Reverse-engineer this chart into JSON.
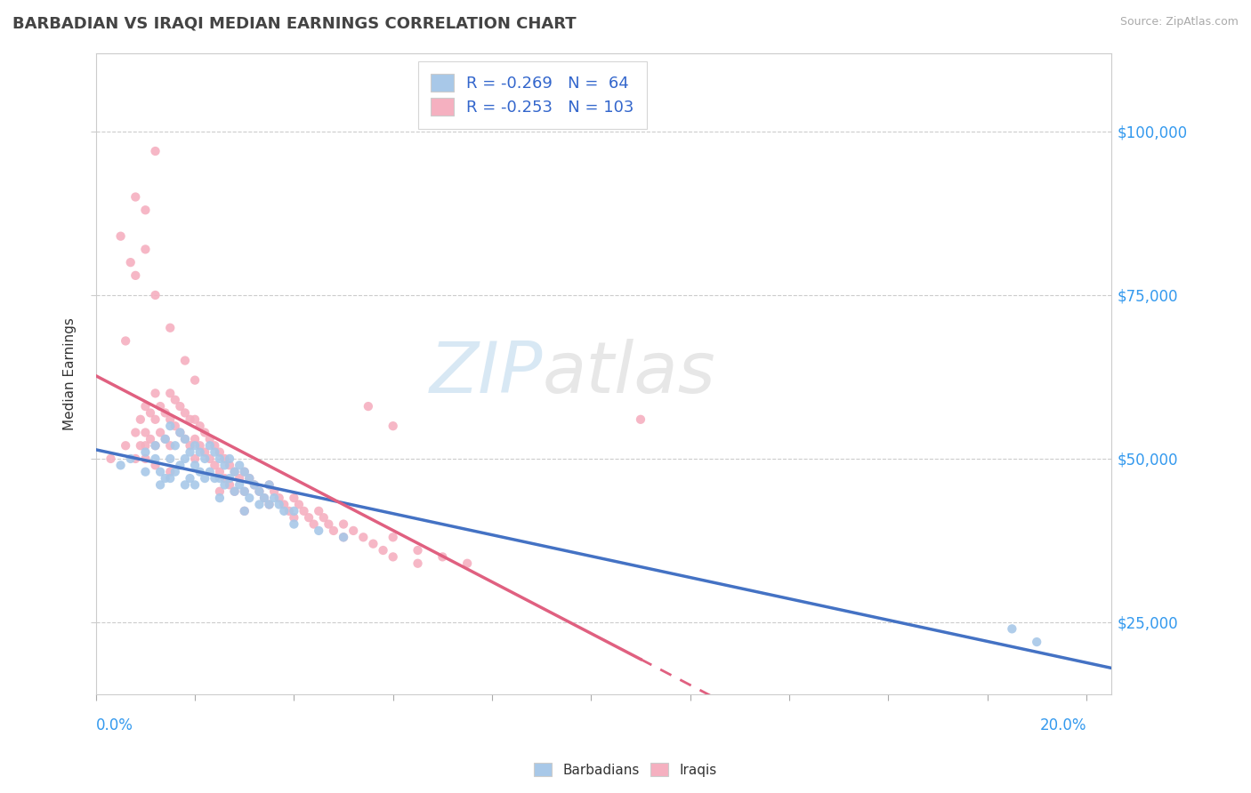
{
  "title": "BARBADIAN VS IRAQI MEDIAN EARNINGS CORRELATION CHART",
  "source": "Source: ZipAtlas.com",
  "ylabel": "Median Earnings",
  "y_ticks": [
    25000,
    50000,
    75000,
    100000
  ],
  "y_tick_labels": [
    "$25,000",
    "$50,000",
    "$75,000",
    "$100,000"
  ],
  "x_range": [
    0.0,
    0.205
  ],
  "y_range": [
    14000,
    112000
  ],
  "barbadian_color": "#a8c8e8",
  "iraqi_color": "#f5b0c0",
  "barbadian_line_color": "#4472c4",
  "iraqi_line_color": "#e06080",
  "watermark_zip": "ZIP",
  "watermark_atlas": "atlas",
  "legend_entries": [
    {
      "label": "R = -0.269   N =  64",
      "color": "#a8c8e8"
    },
    {
      "label": "R = -0.253   N = 103",
      "color": "#f5b0c0"
    }
  ],
  "barbadian_scatter_x": [
    0.005,
    0.007,
    0.01,
    0.01,
    0.012,
    0.012,
    0.013,
    0.013,
    0.014,
    0.014,
    0.015,
    0.015,
    0.015,
    0.016,
    0.016,
    0.017,
    0.017,
    0.018,
    0.018,
    0.018,
    0.019,
    0.019,
    0.02,
    0.02,
    0.02,
    0.021,
    0.021,
    0.022,
    0.022,
    0.023,
    0.023,
    0.024,
    0.024,
    0.025,
    0.025,
    0.025,
    0.026,
    0.026,
    0.027,
    0.027,
    0.028,
    0.028,
    0.029,
    0.029,
    0.03,
    0.03,
    0.03,
    0.031,
    0.031,
    0.032,
    0.033,
    0.033,
    0.034,
    0.035,
    0.035,
    0.036,
    0.037,
    0.038,
    0.04,
    0.04,
    0.045,
    0.05,
    0.19,
    0.185
  ],
  "barbadian_scatter_y": [
    49000,
    50000,
    51000,
    48000,
    52000,
    50000,
    48000,
    46000,
    53000,
    47000,
    55000,
    50000,
    47000,
    52000,
    48000,
    54000,
    49000,
    53000,
    50000,
    46000,
    51000,
    47000,
    52000,
    49000,
    46000,
    51000,
    48000,
    50000,
    47000,
    52000,
    48000,
    51000,
    47000,
    50000,
    47000,
    44000,
    49000,
    46000,
    50000,
    47000,
    48000,
    45000,
    49000,
    46000,
    48000,
    45000,
    42000,
    47000,
    44000,
    46000,
    45000,
    43000,
    44000,
    46000,
    43000,
    44000,
    43000,
    42000,
    42000,
    40000,
    39000,
    38000,
    22000,
    24000
  ],
  "iraqi_scatter_x": [
    0.003,
    0.005,
    0.006,
    0.007,
    0.008,
    0.008,
    0.009,
    0.009,
    0.01,
    0.01,
    0.01,
    0.011,
    0.011,
    0.012,
    0.012,
    0.012,
    0.013,
    0.013,
    0.014,
    0.014,
    0.015,
    0.015,
    0.015,
    0.015,
    0.016,
    0.016,
    0.017,
    0.017,
    0.018,
    0.018,
    0.019,
    0.019,
    0.02,
    0.02,
    0.02,
    0.021,
    0.021,
    0.022,
    0.022,
    0.023,
    0.023,
    0.024,
    0.024,
    0.025,
    0.025,
    0.025,
    0.026,
    0.026,
    0.027,
    0.027,
    0.028,
    0.028,
    0.029,
    0.03,
    0.03,
    0.03,
    0.031,
    0.032,
    0.033,
    0.034,
    0.035,
    0.035,
    0.036,
    0.037,
    0.038,
    0.039,
    0.04,
    0.04,
    0.041,
    0.042,
    0.043,
    0.044,
    0.045,
    0.046,
    0.047,
    0.048,
    0.05,
    0.05,
    0.052,
    0.054,
    0.056,
    0.058,
    0.06,
    0.06,
    0.065,
    0.065,
    0.07,
    0.075,
    0.008,
    0.01,
    0.012,
    0.015,
    0.018,
    0.02,
    0.012,
    0.01,
    0.008,
    0.006,
    0.055,
    0.06,
    0.01,
    0.012,
    0.11
  ],
  "iraqi_scatter_y": [
    50000,
    84000,
    52000,
    80000,
    54000,
    50000,
    56000,
    52000,
    58000,
    54000,
    50000,
    57000,
    53000,
    60000,
    56000,
    52000,
    58000,
    54000,
    57000,
    53000,
    60000,
    56000,
    52000,
    48000,
    59000,
    55000,
    58000,
    54000,
    57000,
    53000,
    56000,
    52000,
    56000,
    53000,
    50000,
    55000,
    52000,
    54000,
    51000,
    53000,
    50000,
    52000,
    49000,
    51000,
    48000,
    45000,
    50000,
    47000,
    49000,
    46000,
    48000,
    45000,
    47000,
    48000,
    45000,
    42000,
    47000,
    46000,
    45000,
    44000,
    46000,
    43000,
    45000,
    44000,
    43000,
    42000,
    44000,
    41000,
    43000,
    42000,
    41000,
    40000,
    42000,
    41000,
    40000,
    39000,
    40000,
    38000,
    39000,
    38000,
    37000,
    36000,
    38000,
    35000,
    36000,
    34000,
    35000,
    34000,
    90000,
    82000,
    75000,
    70000,
    65000,
    62000,
    97000,
    88000,
    78000,
    68000,
    58000,
    55000,
    52000,
    49000,
    56000
  ]
}
